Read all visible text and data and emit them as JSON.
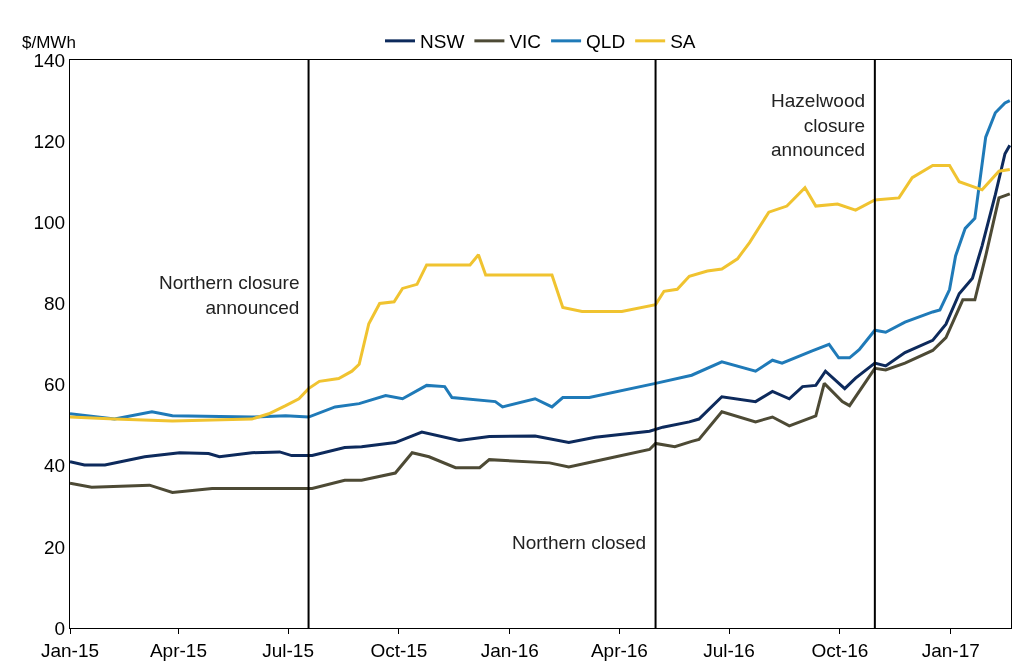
{
  "chart_data": {
    "type": "line",
    "ylabel": "$/MWh",
    "xlim": [
      "2015-01-01",
      "2017-02-20"
    ],
    "xticks": [
      {
        "value": "2015-01-01",
        "label": "Jan-15"
      },
      {
        "value": "2015-04-01",
        "label": "Apr-15"
      },
      {
        "value": "2015-07-01",
        "label": "Jul-15"
      },
      {
        "value": "2015-10-01",
        "label": "Oct-15"
      },
      {
        "value": "2016-01-01",
        "label": "Jan-16"
      },
      {
        "value": "2016-04-01",
        "label": "Apr-16"
      },
      {
        "value": "2016-07-01",
        "label": "Jul-16"
      },
      {
        "value": "2016-10-01",
        "label": "Oct-16"
      },
      {
        "value": "2017-01-01",
        "label": "Jan-17"
      }
    ],
    "ylim": [
      0,
      140
    ],
    "yticks": [
      0,
      20,
      40,
      60,
      80,
      100,
      120,
      140
    ],
    "grid": false,
    "legend": "top",
    "marker": "none",
    "line_style": "solid",
    "series": [
      {
        "name": "NSW",
        "color": "#0d2a5c",
        "x": [
          "2015-01-01",
          "2015-01-13",
          "2015-01-30",
          "2015-03-04",
          "2015-04-02",
          "2015-04-26",
          "2015-05-05",
          "2015-06-01",
          "2015-06-24",
          "2015-07-04",
          "2015-07-21",
          "2015-08-17",
          "2015-08-31",
          "2015-09-28",
          "2015-10-20",
          "2015-11-20",
          "2015-12-15",
          "2016-01-22",
          "2016-02-19",
          "2016-03-12",
          "2016-04-26",
          "2016-05-07",
          "2016-05-29",
          "2016-06-06",
          "2016-06-25",
          "2016-07-23",
          "2016-08-06",
          "2016-08-20",
          "2016-08-31",
          "2016-09-11",
          "2016-09-19",
          "2016-10-05",
          "2016-10-14",
          "2016-10-30",
          "2016-11-08",
          "2016-11-24",
          "2016-12-17",
          "2016-12-28",
          "2017-01-08",
          "2017-01-19",
          "2017-01-27",
          "2017-02-07",
          "2017-02-15",
          "2017-02-19"
        ],
        "values": [
          41,
          40.2,
          40.2,
          42.2,
          43.2,
          43,
          42.2,
          43.2,
          43.4,
          42.5,
          42.5,
          44.5,
          44.7,
          45.7,
          48.3,
          46.2,
          47.2,
          47.3,
          45.7,
          47,
          48.5,
          49.5,
          50.8,
          51.5,
          57,
          55.8,
          58.3,
          56.5,
          59.5,
          59.8,
          63.3,
          59,
          61.6,
          65.3,
          64.6,
          67.9,
          70.9,
          74.9,
          82.4,
          86.2,
          94.2,
          106.8,
          116.9,
          119
        ]
      },
      {
        "name": "VIC",
        "color": "#4d4a35",
        "x": [
          "2015-01-01",
          "2015-01-19",
          "2015-03-08",
          "2015-03-27",
          "2015-04-29",
          "2015-06-29",
          "2015-07-21",
          "2015-08-17",
          "2015-08-31",
          "2015-09-28",
          "2015-10-12",
          "2015-10-26",
          "2015-11-17",
          "2015-12-07",
          "2015-12-15",
          "2016-02-03",
          "2016-02-19",
          "2016-03-29",
          "2016-04-26",
          "2016-05-01",
          "2016-05-17",
          "2016-05-31",
          "2016-06-06",
          "2016-06-25",
          "2016-07-23",
          "2016-08-06",
          "2016-08-20",
          "2016-09-11",
          "2016-09-18",
          "2016-10-03",
          "2016-10-09",
          "2016-10-30",
          "2016-11-08",
          "2016-11-24",
          "2016-12-17",
          "2016-12-28",
          "2017-01-11",
          "2017-01-21",
          "2017-01-30",
          "2017-02-10",
          "2017-02-19"
        ],
        "values": [
          35.7,
          34.7,
          35.2,
          33.4,
          34.4,
          34.4,
          34.4,
          36.4,
          36.4,
          38.2,
          43.2,
          42.2,
          39.5,
          39.5,
          41.5,
          40.7,
          39.7,
          42.2,
          44,
          45.5,
          44.7,
          46,
          46.5,
          53.3,
          50.8,
          52,
          49.8,
          52.3,
          60.3,
          55.8,
          54.8,
          64,
          63.6,
          65.3,
          68.4,
          71.6,
          80.9,
          80.9,
          91.7,
          106,
          107
        ]
      },
      {
        "name": "QLD",
        "color": "#1f7ab8",
        "x": [
          "2015-01-01",
          "2015-02-07",
          "2015-03-10",
          "2015-03-27",
          "2015-06-01",
          "2015-06-29",
          "2015-07-18",
          "2015-08-09",
          "2015-08-29",
          "2015-09-20",
          "2015-10-04",
          "2015-10-24",
          "2015-11-08",
          "2015-11-14",
          "2015-12-20",
          "2015-12-26",
          "2016-01-22",
          "2016-02-05",
          "2016-02-14",
          "2016-03-07",
          "2016-05-01",
          "2016-05-31",
          "2016-06-25",
          "2016-07-23",
          "2016-08-06",
          "2016-08-14",
          "2016-09-08",
          "2016-09-22",
          "2016-09-30",
          "2016-10-09",
          "2016-10-17",
          "2016-10-30",
          "2016-11-08",
          "2016-11-24",
          "2016-12-17",
          "2016-12-23",
          "2016-12-31",
          "2017-01-05",
          "2017-01-13",
          "2017-01-21",
          "2017-01-30",
          "2017-02-07",
          "2017-02-15",
          "2017-02-19"
        ],
        "values": [
          52.8,
          51.5,
          53.3,
          52.3,
          52,
          52.3,
          52,
          54.5,
          55.3,
          57.3,
          56.5,
          59.8,
          59.5,
          56.8,
          55.8,
          54.5,
          56.5,
          54.5,
          56.8,
          56.8,
          60.3,
          62.3,
          65.6,
          63.3,
          66,
          65.3,
          68.3,
          69.9,
          66.6,
          66.6,
          68.6,
          73.4,
          72.9,
          75.4,
          77.9,
          78.4,
          83.4,
          91.7,
          98.5,
          101,
          121,
          127,
          129.4,
          130
        ]
      },
      {
        "name": "SA",
        "color": "#f0c330",
        "x": [
          "2015-01-01",
          "2015-02-07",
          "2015-03-27",
          "2015-06-01",
          "2015-06-15",
          "2015-06-29",
          "2015-07-10",
          "2015-07-18",
          "2015-07-27",
          "2015-08-12",
          "2015-08-23",
          "2015-08-29",
          "2015-09-06",
          "2015-09-15",
          "2015-09-27",
          "2015-10-04",
          "2015-10-16",
          "2015-10-24",
          "2015-11-29",
          "2015-12-06",
          "2015-12-12",
          "2016-02-05",
          "2016-02-14",
          "2016-03-01",
          "2016-04-03",
          "2016-05-01",
          "2016-05-08",
          "2016-05-19",
          "2016-05-29",
          "2016-06-13",
          "2016-06-25",
          "2016-07-08",
          "2016-07-18",
          "2016-08-03",
          "2016-08-18",
          "2016-09-02",
          "2016-09-11",
          "2016-09-29",
          "2016-10-14",
          "2016-10-30",
          "2016-11-19",
          "2016-11-30",
          "2016-12-17",
          "2016-12-31",
          "2017-01-08",
          "2017-01-27",
          "2017-02-10",
          "2017-02-19"
        ],
        "values": [
          52,
          51.5,
          51,
          51.5,
          52.8,
          54.8,
          56.5,
          59,
          60.8,
          61.5,
          63.3,
          65,
          75,
          80,
          80.4,
          83.7,
          84.7,
          89.5,
          89.5,
          92,
          87,
          87,
          79,
          78,
          78,
          79.7,
          83,
          83.5,
          86.7,
          88,
          88.5,
          91,
          95,
          102.5,
          104,
          108.5,
          104,
          104.5,
          103,
          105.5,
          106,
          111,
          114,
          114,
          110,
          108,
          112.6,
          113
        ]
      }
    ],
    "ref_lines": [
      {
        "axis": "x",
        "value": "2015-07-18",
        "label": "Northern closure\nannounced",
        "color": "#000000",
        "line_style": "solid"
      },
      {
        "axis": "x",
        "value": "2016-05-01",
        "label": "Northern closed",
        "color": "#000000",
        "line_style": "solid"
      },
      {
        "axis": "x",
        "value": "2016-10-30",
        "label": "Hazelwood\nclosure\nannounced",
        "color": "#000000",
        "line_style": "solid"
      }
    ]
  }
}
